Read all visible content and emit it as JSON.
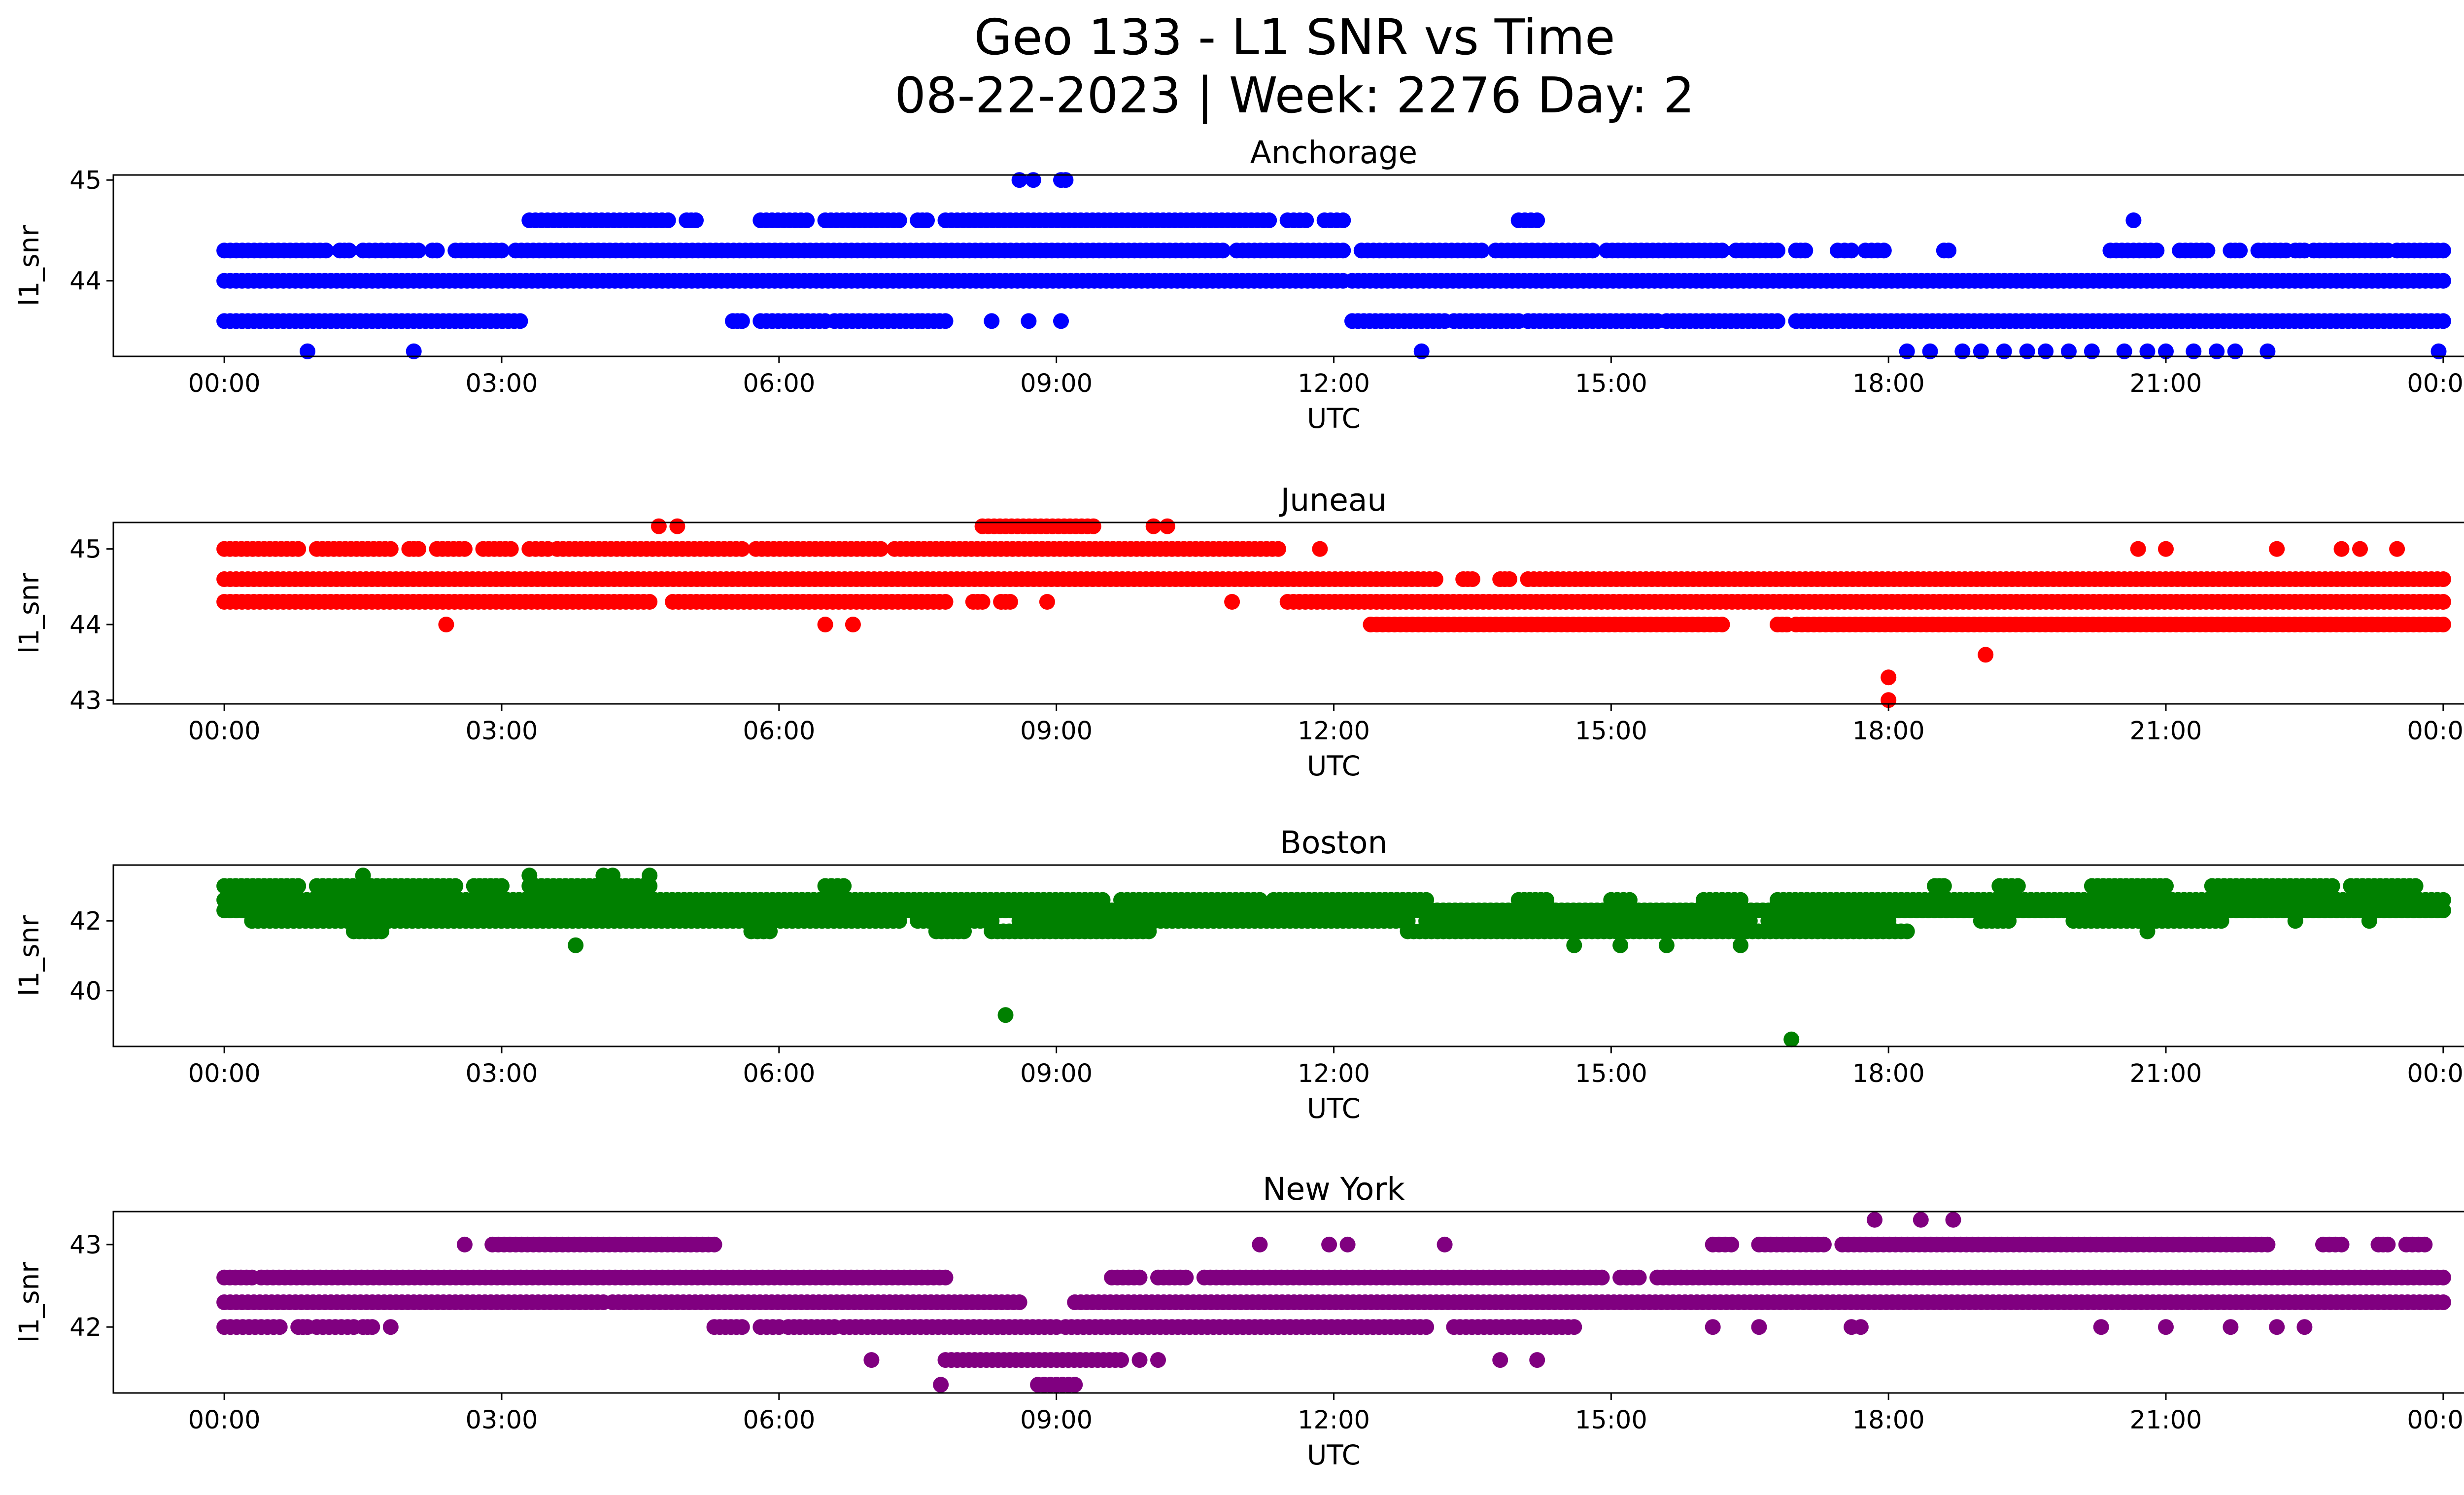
{
  "figure": {
    "title_line1": "Geo 133 - L1 SNR vs Time",
    "title_line2": "08-22-2023 | Week: 2276 Day: 2"
  },
  "chart_data": [
    {
      "type": "scatter",
      "title": "Anchorage",
      "xlabel": "UTC",
      "ylabel": "l1_snr",
      "color": "#0000ff",
      "x_ticks": [
        "00:00",
        "03:00",
        "06:00",
        "09:00",
        "12:00",
        "15:00",
        "18:00",
        "21:00",
        "00:00"
      ],
      "y_ticks": [
        45,
        44
      ],
      "xlim_hours": [
        -1.2,
        25.2
      ],
      "ylim": [
        43.25,
        45.05
      ],
      "grid": false,
      "bands": [
        {
          "y": 44.3,
          "segments": [
            [
              0,
              1.1
            ],
            [
              1.25,
              1.35
            ],
            [
              1.5,
              2.1
            ],
            [
              2.25,
              2.3
            ],
            [
              2.5,
              3.0
            ],
            [
              3.15,
              10.8
            ],
            [
              10.95,
              12.1
            ],
            [
              12.3,
              13.6
            ],
            [
              13.75,
              14.8
            ],
            [
              14.95,
              16.2
            ],
            [
              16.35,
              16.8
            ],
            [
              17.0,
              17.1
            ],
            [
              17.45,
              17.6
            ],
            [
              17.75,
              17.95
            ],
            [
              18.6,
              18.65
            ],
            [
              20.4,
              20.9
            ],
            [
              21.15,
              21.45
            ],
            [
              21.7,
              21.8
            ],
            [
              22.0,
              22.3
            ],
            [
              22.4,
              22.5
            ],
            [
              22.6,
              23.4
            ],
            [
              23.5,
              24.0
            ]
          ]
        },
        {
          "y": 44.0,
          "segments": [
            [
              0,
              12.1
            ],
            [
              12.2,
              24.0
            ]
          ]
        },
        {
          "y": 43.6,
          "segments": [
            [
              0,
              3.2
            ],
            [
              5.5,
              5.6
            ],
            [
              5.8,
              6.5
            ],
            [
              6.6,
              7.5
            ],
            [
              7.55,
              7.8
            ],
            [
              12.2,
              13.2
            ],
            [
              13.3,
              14.0
            ],
            [
              14.1,
              15.5
            ],
            [
              15.6,
              16.8
            ],
            [
              17.0,
              24.0
            ]
          ]
        },
        {
          "y": 44.6,
          "segments": [
            [
              3.3,
              4.8
            ],
            [
              5.0,
              5.1
            ],
            [
              5.8,
              6.3
            ],
            [
              6.5,
              7.3
            ],
            [
              7.5,
              7.6
            ],
            [
              7.8,
              11.3
            ],
            [
              11.5,
              11.7
            ],
            [
              11.9,
              12.1
            ],
            [
              14.0,
              14.2
            ]
          ]
        }
      ],
      "outliers": [
        {
          "x": 0.9,
          "y": 43.3
        },
        {
          "x": 2.05,
          "y": 43.3
        },
        {
          "x": 12.95,
          "y": 43.3
        },
        {
          "x": 18.2,
          "y": 43.3
        },
        {
          "x": 18.45,
          "y": 43.3
        },
        {
          "x": 18.8,
          "y": 43.3
        },
        {
          "x": 19.0,
          "y": 43.3
        },
        {
          "x": 19.25,
          "y": 43.3
        },
        {
          "x": 19.5,
          "y": 43.3
        },
        {
          "x": 19.7,
          "y": 43.3
        },
        {
          "x": 19.95,
          "y": 43.3
        },
        {
          "x": 20.2,
          "y": 43.3
        },
        {
          "x": 20.55,
          "y": 43.3
        },
        {
          "x": 20.8,
          "y": 43.3
        },
        {
          "x": 21.0,
          "y": 43.3
        },
        {
          "x": 21.3,
          "y": 43.3
        },
        {
          "x": 21.55,
          "y": 43.3
        },
        {
          "x": 21.75,
          "y": 43.3
        },
        {
          "x": 22.1,
          "y": 43.3
        },
        {
          "x": 23.95,
          "y": 43.3
        },
        {
          "x": 8.6,
          "y": 45.0
        },
        {
          "x": 8.75,
          "y": 45.0
        },
        {
          "x": 9.05,
          "y": 45.0
        },
        {
          "x": 9.1,
          "y": 45.0
        },
        {
          "x": 8.3,
          "y": 43.6
        },
        {
          "x": 8.7,
          "y": 43.6
        },
        {
          "x": 9.05,
          "y": 43.6
        },
        {
          "x": 20.65,
          "y": 44.6
        }
      ]
    },
    {
      "type": "scatter",
      "title": "Juneau",
      "xlabel": "UTC",
      "ylabel": "l1_snr",
      "color": "#ff0000",
      "x_ticks": [
        "00:00",
        "03:00",
        "06:00",
        "09:00",
        "12:00",
        "15:00",
        "18:00",
        "21:00",
        "00:00"
      ],
      "y_ticks": [
        45,
        44,
        43
      ],
      "xlim_hours": [
        -1.2,
        25.2
      ],
      "ylim": [
        42.95,
        45.35
      ],
      "grid": false,
      "bands": [
        {
          "y": 45.0,
          "segments": [
            [
              0,
              0.8
            ],
            [
              1.0,
              1.8
            ],
            [
              2.0,
              2.1
            ],
            [
              2.3,
              2.6
            ],
            [
              2.8,
              3.1
            ],
            [
              3.3,
              3.5
            ],
            [
              3.6,
              5.6
            ],
            [
              5.75,
              7.1
            ],
            [
              7.25,
              11.4
            ]
          ]
        },
        {
          "y": 44.6,
          "segments": [
            [
              0,
              13.1
            ],
            [
              13.4,
              13.5
            ],
            [
              13.8,
              13.9
            ],
            [
              14.1,
              24.0
            ]
          ]
        },
        {
          "y": 44.3,
          "segments": [
            [
              0,
              4.6
            ],
            [
              4.85,
              7.8
            ],
            [
              8.1,
              8.2
            ],
            [
              8.4,
              8.5
            ],
            [
              11.5,
              24.0
            ]
          ]
        },
        {
          "y": 44.0,
          "segments": [
            [
              12.4,
              16.2
            ],
            [
              16.8,
              16.9
            ],
            [
              17.0,
              24.0
            ]
          ]
        },
        {
          "y": 45.3,
          "segments": [
            [
              8.2,
              9.4
            ]
          ]
        }
      ],
      "outliers": [
        {
          "x": 2.4,
          "y": 44.0
        },
        {
          "x": 6.5,
          "y": 44.0
        },
        {
          "x": 6.8,
          "y": 44.0
        },
        {
          "x": 4.7,
          "y": 45.3
        },
        {
          "x": 4.9,
          "y": 45.3
        },
        {
          "x": 10.05,
          "y": 45.3
        },
        {
          "x": 10.2,
          "y": 45.3
        },
        {
          "x": 8.9,
          "y": 44.3
        },
        {
          "x": 10.9,
          "y": 44.3
        },
        {
          "x": 11.85,
          "y": 45.0
        },
        {
          "x": 20.7,
          "y": 45.0
        },
        {
          "x": 21.0,
          "y": 45.0
        },
        {
          "x": 22.2,
          "y": 45.0
        },
        {
          "x": 22.9,
          "y": 45.0
        },
        {
          "x": 23.1,
          "y": 45.0
        },
        {
          "x": 23.5,
          "y": 45.0
        },
        {
          "x": 18.0,
          "y": 43.3
        },
        {
          "x": 18.0,
          "y": 43.0
        },
        {
          "x": 19.05,
          "y": 43.6
        }
      ]
    },
    {
      "type": "scatter",
      "title": "Boston",
      "xlabel": "UTC",
      "ylabel": "l1_snr",
      "color": "#008000",
      "x_ticks": [
        "00:00",
        "03:00",
        "06:00",
        "09:00",
        "12:00",
        "15:00",
        "18:00",
        "21:00",
        "00:00"
      ],
      "y_ticks": [
        42,
        40
      ],
      "xlim_hours": [
        -1.2,
        25.2
      ],
      "ylim": [
        38.4,
        43.6
      ],
      "grid": false,
      "bands": [
        {
          "y": 43.0,
          "segments": [
            [
              0,
              0.8
            ],
            [
              1.0,
              2.5
            ],
            [
              2.7,
              3.0
            ],
            [
              3.3,
              4.6
            ],
            [
              6.5,
              6.7
            ],
            [
              18.5,
              18.6
            ],
            [
              19.2,
              19.4
            ],
            [
              20.2,
              21.0
            ],
            [
              21.5,
              22.8
            ],
            [
              23.0,
              23.7
            ]
          ]
        },
        {
          "y": 42.6,
          "segments": [
            [
              0,
              9.5
            ],
            [
              9.7,
              11.2
            ],
            [
              11.35,
              13.0
            ],
            [
              14.0,
              14.3
            ],
            [
              15.0,
              15.2
            ],
            [
              16.0,
              16.4
            ],
            [
              16.8,
              24.0
            ]
          ]
        },
        {
          "y": 42.3,
          "segments": [
            [
              0,
              24.0
            ]
          ]
        },
        {
          "y": 42.0,
          "segments": [
            [
              0.3,
              7.3
            ],
            [
              7.5,
              8.3
            ],
            [
              8.6,
              12.8
            ],
            [
              13.0,
              16.5
            ],
            [
              16.7,
              18.0
            ],
            [
              19.0,
              19.3
            ],
            [
              20.0,
              21.6
            ]
          ]
        },
        {
          "y": 41.7,
          "segments": [
            [
              1.4,
              1.7
            ],
            [
              5.7,
              5.9
            ],
            [
              7.7,
              8.0
            ],
            [
              8.3,
              10.0
            ],
            [
              12.8,
              18.2
            ]
          ]
        }
      ],
      "outliers": [
        {
          "x": 0.3,
          "y": 42.0
        },
        {
          "x": 1.5,
          "y": 43.3
        },
        {
          "x": 3.3,
          "y": 43.3
        },
        {
          "x": 4.1,
          "y": 43.3
        },
        {
          "x": 4.2,
          "y": 43.3
        },
        {
          "x": 4.6,
          "y": 43.3
        },
        {
          "x": 3.8,
          "y": 41.3
        },
        {
          "x": 14.6,
          "y": 41.3
        },
        {
          "x": 15.1,
          "y": 41.3
        },
        {
          "x": 15.6,
          "y": 41.3
        },
        {
          "x": 16.4,
          "y": 41.3
        },
        {
          "x": 20.8,
          "y": 41.7
        },
        {
          "x": 22.4,
          "y": 42.0
        },
        {
          "x": 23.2,
          "y": 42.0
        },
        {
          "x": 8.45,
          "y": 39.3
        },
        {
          "x": 16.95,
          "y": 38.6
        }
      ]
    },
    {
      "type": "scatter",
      "title": "New York",
      "xlabel": "UTC",
      "ylabel": "l1_snr",
      "color": "#800080",
      "x_ticks": [
        "00:00",
        "03:00",
        "06:00",
        "09:00",
        "12:00",
        "15:00",
        "18:00",
        "21:00",
        "00:00"
      ],
      "y_ticks": [
        43,
        42
      ],
      "xlim_hours": [
        -1.2,
        25.2
      ],
      "ylim": [
        41.2,
        43.4
      ],
      "grid": false,
      "bands": [
        {
          "y": 43.0,
          "segments": [
            [
              2.9,
              5.3
            ],
            [
              16.1,
              16.3
            ],
            [
              16.6,
              17.3
            ],
            [
              17.5,
              22.1
            ],
            [
              22.7,
              22.9
            ],
            [
              23.3,
              23.4
            ],
            [
              23.6,
              23.8
            ]
          ]
        },
        {
          "y": 42.6,
          "segments": [
            [
              0,
              0.3
            ],
            [
              0.4,
              7.8
            ],
            [
              9.6,
              9.9
            ],
            [
              10.1,
              10.4
            ],
            [
              10.6,
              14.9
            ],
            [
              15.1,
              15.3
            ],
            [
              15.5,
              24.0
            ]
          ]
        },
        {
          "y": 42.3,
          "segments": [
            [
              0,
              4.1
            ],
            [
              4.2,
              8.6
            ],
            [
              9.2,
              24.0
            ]
          ]
        },
        {
          "y": 42.0,
          "segments": [
            [
              0,
              0.6
            ],
            [
              0.8,
              0.9
            ],
            [
              1.0,
              1.4
            ],
            [
              1.5,
              1.6
            ],
            [
              5.3,
              5.6
            ],
            [
              5.8,
              6.0
            ],
            [
              6.1,
              6.6
            ],
            [
              6.7,
              9.0
            ],
            [
              9.1,
              13.0
            ],
            [
              13.3,
              14.6
            ]
          ]
        },
        {
          "y": 41.6,
          "segments": [
            [
              7.8,
              9.7
            ]
          ]
        },
        {
          "y": 41.3,
          "segments": [
            [
              8.8,
              9.2
            ]
          ]
        }
      ],
      "outliers": [
        {
          "x": 1.8,
          "y": 42.0
        },
        {
          "x": 2.6,
          "y": 43.0
        },
        {
          "x": 7.0,
          "y": 41.6
        },
        {
          "x": 7.75,
          "y": 41.3
        },
        {
          "x": 9.9,
          "y": 41.6
        },
        {
          "x": 10.1,
          "y": 41.6
        },
        {
          "x": 11.2,
          "y": 43.0
        },
        {
          "x": 11.95,
          "y": 43.0
        },
        {
          "x": 12.15,
          "y": 43.0
        },
        {
          "x": 13.2,
          "y": 43.0
        },
        {
          "x": 13.8,
          "y": 41.6
        },
        {
          "x": 14.2,
          "y": 41.6
        },
        {
          "x": 16.1,
          "y": 42.0
        },
        {
          "x": 16.6,
          "y": 42.0
        },
        {
          "x": 17.6,
          "y": 42.0
        },
        {
          "x": 17.7,
          "y": 42.0
        },
        {
          "x": 17.85,
          "y": 43.3
        },
        {
          "x": 18.35,
          "y": 43.3
        },
        {
          "x": 18.7,
          "y": 43.3
        },
        {
          "x": 20.3,
          "y": 42.0
        },
        {
          "x": 21.0,
          "y": 42.0
        },
        {
          "x": 21.7,
          "y": 42.0
        },
        {
          "x": 22.2,
          "y": 42.0
        },
        {
          "x": 22.5,
          "y": 42.0
        }
      ]
    }
  ]
}
